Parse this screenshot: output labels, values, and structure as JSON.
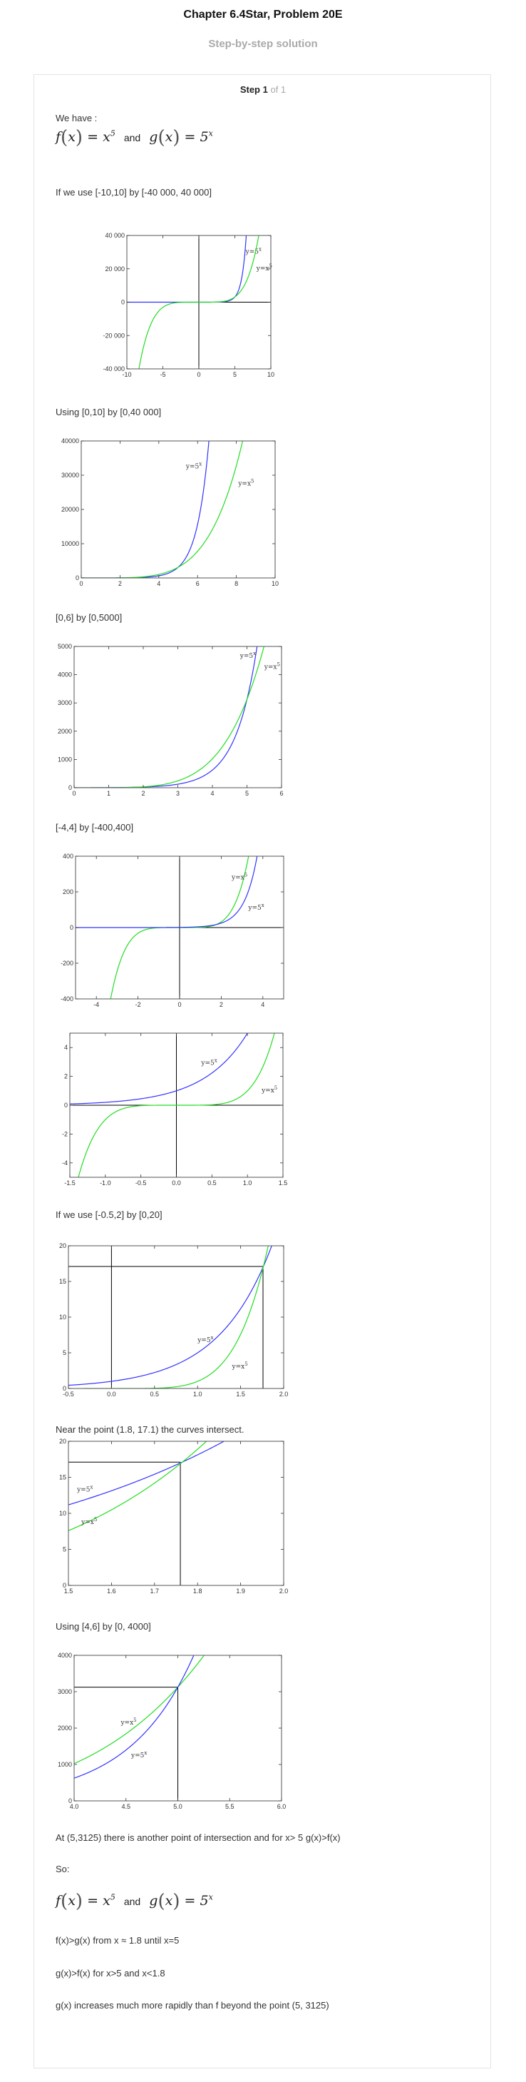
{
  "header": {
    "title": "Chapter 6.4Star, Problem 20E",
    "subtitle": "Step-by-step solution",
    "step_label": "Step 1",
    "step_of": "of 1"
  },
  "texts": {
    "we_have": "We have :",
    "f_name": "f",
    "f_arg": "x",
    "f_eq": "= x",
    "f_exp": "5",
    "and": "and",
    "g_name": "g",
    "g_arg": "x",
    "g_eq": "= 5",
    "g_exp": "x",
    "window1": "If we use [-10,10] by [-40 000, 40 000]",
    "window2": "Using [0,10] by [0,40 000]",
    "window3": "[0,6] by [0,5000]",
    "window4": "[-4,4] by [-400,400]",
    "window6": "If we use [-0.5,2] by [0,20]",
    "near": "Near the point (1.8, 17.1) the curves intersect.",
    "window8": "Using [4,6] by [0, 4000]",
    "another": "At (5,3125) there is another point of intersection and for x> 5  g(x)>f(x)",
    "so": "So:",
    "c1": "f(x)>g(x) from x ≈ 1.8 until x=5",
    "c2": "g(x)>f(x) for x>5 and x<1.8",
    "c3": "g(x) increases much more rapidly than f beyond the point (5, 3125)"
  },
  "colors": {
    "blue": "#3333ff",
    "green": "#22dd22",
    "axis": "#000000",
    "frame": "#555555"
  },
  "chart_data": [
    {
      "type": "line",
      "xlim": [
        -10,
        10
      ],
      "ylim": [
        -40000,
        40000
      ],
      "xticks": [
        -10,
        -5,
        0,
        5,
        10
      ],
      "yticks": [
        -40000,
        -20000,
        0,
        20000,
        40000
      ],
      "xtick_labels": [
        "-10",
        "-5",
        "0",
        "5",
        "10"
      ],
      "ytick_labels": [
        "-40 000",
        "-20 000",
        "0",
        "20 000",
        "40 000"
      ],
      "series": [
        {
          "name": "y=5^x",
          "label": "y=5^x",
          "color": "blue",
          "fn": "g",
          "lx": 6.5,
          "ly": 29000
        },
        {
          "name": "y=x^5",
          "label": "y=x^5",
          "color": "green",
          "fn": "f",
          "lx": 8.0,
          "ly": 19000
        }
      ],
      "axes": true
    },
    {
      "type": "line",
      "xlim": [
        0,
        10
      ],
      "ylim": [
        0,
        40000
      ],
      "xticks": [
        0,
        2,
        4,
        6,
        8,
        10
      ],
      "yticks": [
        0,
        10000,
        20000,
        30000,
        40000
      ],
      "xtick_labels": [
        "0",
        "2",
        "4",
        "6",
        "8",
        "10"
      ],
      "ytick_labels": [
        "0",
        "10000",
        "20000",
        "30000",
        "40000"
      ],
      "series": [
        {
          "name": "y=5^x",
          "label": "y=5^x",
          "color": "blue",
          "fn": "g",
          "lx": 5.4,
          "ly": 32000
        },
        {
          "name": "y=x^5",
          "label": "y=x^5",
          "color": "green",
          "fn": "f",
          "lx": 8.1,
          "ly": 27000
        }
      ],
      "axes": false
    },
    {
      "type": "line",
      "xlim": [
        0,
        6
      ],
      "ylim": [
        0,
        5000
      ],
      "xticks": [
        0,
        1,
        2,
        3,
        4,
        5,
        6
      ],
      "yticks": [
        0,
        1000,
        2000,
        3000,
        4000,
        5000
      ],
      "xtick_labels": [
        "0",
        "1",
        "2",
        "3",
        "4",
        "5",
        "6"
      ],
      "ytick_labels": [
        "0",
        "1000",
        "2000",
        "3000",
        "4000",
        "5000"
      ],
      "series": [
        {
          "name": "y=5^x",
          "label": "y=5^x",
          "color": "blue",
          "fn": "g",
          "lx": 4.8,
          "ly": 4600
        },
        {
          "name": "y=x^5",
          "label": "y=x^5",
          "color": "green",
          "fn": "f",
          "lx": 5.5,
          "ly": 4200
        }
      ],
      "axes": false
    },
    {
      "type": "line",
      "xlim": [
        -5,
        5
      ],
      "ylim": [
        -400,
        400
      ],
      "xticks": [
        -4,
        -2,
        0,
        2,
        4
      ],
      "yticks": [
        -400,
        -200,
        0,
        200,
        400
      ],
      "xtick_labels": [
        "-4",
        "-2",
        "0",
        "2",
        "4"
      ],
      "ytick_labels": [
        "-400",
        "-200",
        "0",
        "200",
        "400"
      ],
      "series": [
        {
          "name": "y=x^5",
          "label": "y=x^5",
          "color": "green",
          "fn": "f",
          "lx": 2.5,
          "ly": 270
        },
        {
          "name": "y=5^x",
          "label": "y=5^x",
          "color": "blue",
          "fn": "g",
          "lx": 3.3,
          "ly": 100
        }
      ],
      "axes": true
    },
    {
      "type": "line",
      "xlim": [
        -1.5,
        1.5
      ],
      "ylim": [
        -5,
        5
      ],
      "xticks": [
        -1.5,
        -1,
        -0.5,
        0,
        0.5,
        1,
        1.5
      ],
      "yticks": [
        -4,
        -2,
        0,
        2,
        4
      ],
      "xtick_labels": [
        "-1.5",
        "-1.0",
        "-0.5",
        "0.0",
        "0.5",
        "1.0",
        "1.5"
      ],
      "ytick_labels": [
        "-4",
        "-2",
        "0",
        "2",
        "4"
      ],
      "series": [
        {
          "name": "y=5^x",
          "label": "y=5^x",
          "color": "blue",
          "fn": "g",
          "lx": 0.35,
          "ly": 2.8
        },
        {
          "name": "y=x^5",
          "label": "y=x^5",
          "color": "green",
          "fn": "f",
          "lx": 1.2,
          "ly": 0.9
        }
      ],
      "axes": true
    },
    {
      "type": "line",
      "xlim": [
        -0.5,
        2
      ],
      "ylim": [
        0,
        20
      ],
      "xticks": [
        -0.5,
        0,
        0.5,
        1,
        1.5,
        2
      ],
      "yticks": [
        0,
        5,
        10,
        15,
        20
      ],
      "xtick_labels": [
        "-0.5",
        "0.0",
        "0.5",
        "1.0",
        "1.5",
        "2.0"
      ],
      "ytick_labels": [
        "0",
        "5",
        "10",
        "15",
        "20"
      ],
      "series": [
        {
          "name": "y=5^x",
          "label": "y=5^x",
          "color": "blue",
          "fn": "g",
          "lx": 1.0,
          "ly": 6.5
        },
        {
          "name": "y=x^5",
          "label": "y=x^5",
          "color": "green",
          "fn": "f",
          "lx": 1.4,
          "ly": 2.8
        }
      ],
      "axes": true,
      "guides": {
        "x": 1.76,
        "y": 17.1
      }
    },
    {
      "type": "line",
      "xlim": [
        1.5,
        2
      ],
      "ylim": [
        0,
        20
      ],
      "xticks": [
        1.5,
        1.6,
        1.7,
        1.8,
        1.9,
        2
      ],
      "yticks": [
        0,
        5,
        10,
        15,
        20
      ],
      "xtick_labels": [
        "1.5",
        "1.6",
        "1.7",
        "1.8",
        "1.9",
        "2.0"
      ],
      "ytick_labels": [
        "0",
        "5",
        "10",
        "15",
        "20"
      ],
      "series": [
        {
          "name": "y=5^x",
          "label": "y=5^x",
          "color": "blue",
          "fn": "g",
          "lx": 1.52,
          "ly": 13
        },
        {
          "name": "y=x^5",
          "label": "y=x^5",
          "color": "green",
          "fn": "f",
          "lx": 1.53,
          "ly": 8.5
        }
      ],
      "axes": false,
      "guides": {
        "x": 1.76,
        "y": 17.1
      }
    },
    {
      "type": "line",
      "xlim": [
        4,
        6
      ],
      "ylim": [
        0,
        4000
      ],
      "xticks": [
        4,
        4.5,
        5,
        5.5,
        6
      ],
      "yticks": [
        0,
        1000,
        2000,
        3000,
        4000
      ],
      "xtick_labels": [
        "4.0",
        "4.5",
        "5.0",
        "5.5",
        "6.0"
      ],
      "ytick_labels": [
        "0",
        "1000",
        "2000",
        "3000",
        "4000"
      ],
      "series": [
        {
          "name": "y=x^5",
          "label": "y=x^5",
          "color": "green",
          "fn": "f",
          "lx": 4.45,
          "ly": 2100
        },
        {
          "name": "y=5^x",
          "label": "y=5^x",
          "color": "blue",
          "fn": "g",
          "lx": 4.55,
          "ly": 1200
        }
      ],
      "axes": false,
      "guides": {
        "x": 5,
        "y": 3125
      }
    }
  ]
}
